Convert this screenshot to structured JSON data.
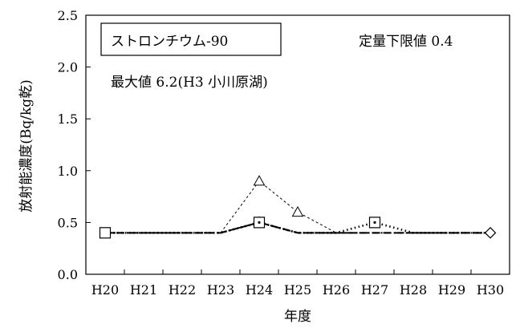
{
  "chart_data": {
    "type": "line",
    "title": "",
    "xlabel": "年度",
    "ylabel": "放射能濃度(Bq/kg乾)",
    "categories": [
      "H20",
      "H21",
      "H22",
      "H23",
      "H24",
      "H25",
      "H26",
      "H27",
      "H28",
      "H29",
      "H30"
    ],
    "ylim": [
      0,
      2.5
    ],
    "yticks": [
      0,
      0.5,
      1.0,
      1.5,
      2.0,
      2.5
    ],
    "ytick_labels": [
      "0.0",
      "0.5",
      "1.0",
      "1.5",
      "2.0",
      "2.5"
    ],
    "grid": false,
    "legend": "none",
    "series": [
      {
        "style": "thin-dashed",
        "marker": "triangle",
        "values": [
          null,
          null,
          null,
          0.4,
          0.9,
          0.6,
          0.4,
          null,
          null,
          null,
          null
        ],
        "marker_indices": [
          4,
          5
        ]
      },
      {
        "style": "dotted",
        "marker": "square",
        "values": [
          0.4,
          0.4,
          0.4,
          0.4,
          0.5,
          0.4,
          0.4,
          0.5,
          0.4,
          0.4,
          0.4
        ],
        "marker_indices": [
          0,
          4,
          7
        ]
      },
      {
        "style": "dash-dot",
        "marker": "circle",
        "values": [
          0.4,
          0.4,
          0.4,
          0.4,
          0.5,
          0.4,
          0.4,
          0.4,
          0.4,
          0.4,
          0.4
        ],
        "marker_indices": [
          4
        ]
      },
      {
        "style": "dashed",
        "marker": "diamond",
        "values": [
          0.4,
          0.4,
          0.4,
          0.4,
          0.5,
          0.4,
          0.4,
          0.4,
          0.4,
          0.4,
          0.4
        ],
        "marker_indices": [
          4,
          10
        ]
      }
    ],
    "annotations": {
      "boxed_label": "ストロンチウム-90",
      "detection_limit": "定量下限値 0.4",
      "max_note": "最大値 6.2(H3 小川原湖)"
    }
  }
}
